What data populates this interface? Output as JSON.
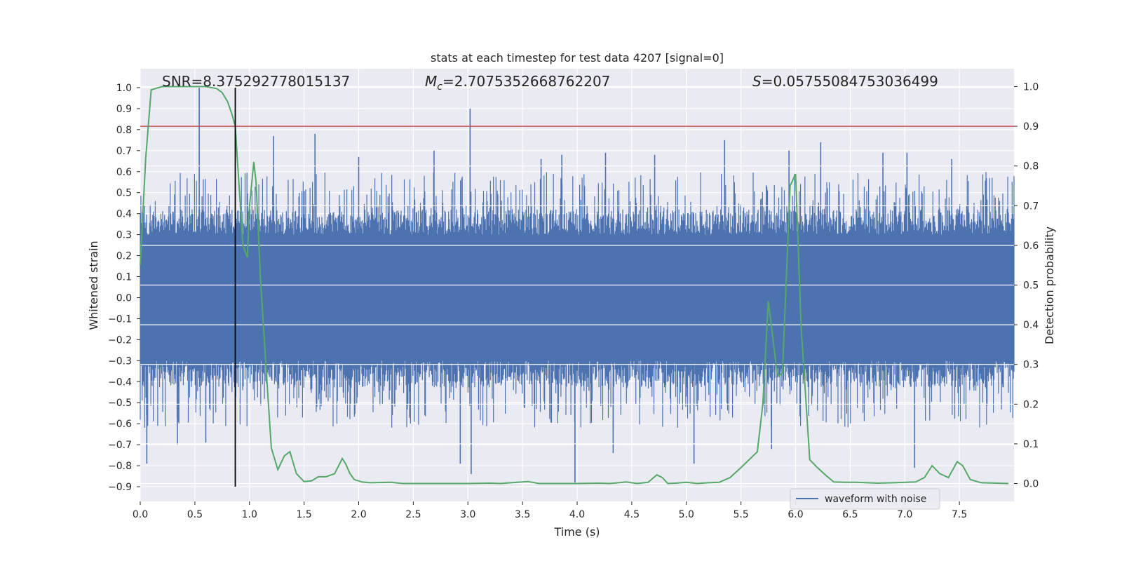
{
  "chart_data": {
    "type": "line",
    "title": "stats at each timestep for test data 4207 [signal=0]",
    "xlabel": "Time (s)",
    "ylabel_left": "Whitened strain",
    "ylabel_right": "Detection probability",
    "xlim": [
      0.0,
      8.0
    ],
    "ylim_left": [
      -0.97,
      1.09
    ],
    "ylim_right": [
      -0.045,
      1.045
    ],
    "x_ticks": [
      0.0,
      0.5,
      1.0,
      1.5,
      2.0,
      2.5,
      3.0,
      3.5,
      4.0,
      4.5,
      5.0,
      5.5,
      6.0,
      6.5,
      7.0,
      7.5
    ],
    "x_tick_labels": [
      "0.0",
      "0.5",
      "1.0",
      "1.5",
      "2.0",
      "2.5",
      "3.0",
      "3.5",
      "4.0",
      "4.5",
      "5.0",
      "5.5",
      "6.0",
      "6.5",
      "7.0",
      "7.5"
    ],
    "y_left_ticks": [
      1.0,
      0.9,
      0.8,
      0.7,
      0.6,
      0.5,
      0.4,
      0.3,
      0.2,
      0.1,
      0.0,
      -0.1,
      -0.2,
      -0.3,
      -0.4,
      -0.5,
      -0.6,
      -0.7,
      -0.8,
      -0.9
    ],
    "y_left_tick_labels": [
      "1.0",
      "0.9",
      "0.8",
      "0.7",
      "0.6",
      "0.5",
      "0.4",
      "0.3",
      "0.2",
      "0.1",
      "0.0",
      "−0.1",
      "−0.2",
      "−0.3",
      "−0.4",
      "−0.5",
      "−0.6",
      "−0.7",
      "−0.8",
      "−0.9"
    ],
    "y_right_ticks": [
      1.0,
      0.9,
      0.8,
      0.7,
      0.6,
      0.5,
      0.4,
      0.3,
      0.2,
      0.1,
      0.0
    ],
    "y_right_tick_labels": [
      "1.0",
      "0.9",
      "0.8",
      "0.7",
      "0.6",
      "0.5",
      "0.4",
      "0.3",
      "0.2",
      "0.1",
      "0.0"
    ],
    "grid": true,
    "stats": {
      "snr": "SNR=8.375292778015137",
      "mc_symbol": "M",
      "mc_subscript": "c",
      "mc_value": "=2.7075352668762207",
      "s_symbol": "S",
      "s_value": "=0.05755084753036499"
    },
    "legend": {
      "label": "waveform with noise",
      "placement": "lower right"
    },
    "colors": {
      "waveform": "#4c72b0",
      "probability": "#55a868",
      "threshold": "#c44e52",
      "marker": "#000000",
      "plot_bg": "#eaeaf2",
      "grid": "#ffffff"
    },
    "threshold": {
      "axis": "right",
      "value": 0.9
    },
    "marker_line": {
      "x": 0.87,
      "y_range": [
        -0.9,
        1.0
      ]
    },
    "waveform": {
      "series_name": "waveform with noise",
      "typical_upper": 0.3,
      "typical_lower": -0.3,
      "spikes": [
        {
          "x": 0.54,
          "y": 1.0
        },
        {
          "x": 3.02,
          "y": 0.9
        },
        {
          "x": 1.6,
          "y": 0.78
        },
        {
          "x": 1.22,
          "y": 0.77
        },
        {
          "x": 3.98,
          "y": -0.88
        },
        {
          "x": 3.03,
          "y": -0.84
        },
        {
          "x": 0.06,
          "y": -0.79
        },
        {
          "x": 2.93,
          "y": -0.79
        },
        {
          "x": 7.09,
          "y": -0.81
        },
        {
          "x": 5.35,
          "y": 0.75
        },
        {
          "x": 6.23,
          "y": 0.74
        },
        {
          "x": 5.94,
          "y": 0.7
        },
        {
          "x": 7.02,
          "y": 0.69
        },
        {
          "x": 4.26,
          "y": 0.69
        },
        {
          "x": 6.8,
          "y": 0.69
        },
        {
          "x": 2.69,
          "y": 0.7
        },
        {
          "x": 2.0,
          "y": 0.67
        },
        {
          "x": 4.33,
          "y": -0.74
        },
        {
          "x": 4.71,
          "y": 0.68
        },
        {
          "x": 0.34,
          "y": -0.7
        },
        {
          "x": 0.6,
          "y": -0.69
        },
        {
          "x": 5.07,
          "y": -0.79
        },
        {
          "x": 3.67,
          "y": 0.66
        },
        {
          "x": 3.86,
          "y": 0.68
        },
        {
          "x": 5.78,
          "y": -0.72
        },
        {
          "x": 7.43,
          "y": 0.66
        }
      ]
    },
    "probability": {
      "series_name": "",
      "x": [
        0.0,
        0.05,
        0.1,
        0.2,
        0.3,
        0.4,
        0.5,
        0.6,
        0.7,
        0.75,
        0.8,
        0.84,
        0.87,
        0.9,
        0.94,
        0.98,
        1.0,
        1.04,
        1.06,
        1.1,
        1.15,
        1.2,
        1.26,
        1.32,
        1.37,
        1.43,
        1.5,
        1.57,
        1.63,
        1.7,
        1.78,
        1.85,
        1.88,
        1.92,
        1.96,
        2.03,
        2.1,
        2.3,
        2.4,
        2.6,
        2.8,
        3.0,
        3.2,
        3.3,
        3.45,
        3.55,
        3.65,
        3.8,
        4.0,
        4.2,
        4.3,
        4.45,
        4.55,
        4.65,
        4.73,
        4.78,
        4.83,
        4.9,
        5.0,
        5.1,
        5.2,
        5.3,
        5.4,
        5.5,
        5.65,
        5.7,
        5.75,
        5.8,
        5.83,
        5.85,
        5.88,
        5.95,
        6.0,
        6.05,
        6.13,
        6.2,
        6.28,
        6.35,
        6.45,
        6.55,
        6.65,
        6.75,
        6.9,
        7.1,
        7.18,
        7.25,
        7.32,
        7.4,
        7.48,
        7.53,
        7.6,
        7.7,
        7.95
      ],
      "y": [
        0.55,
        0.82,
        0.992,
        1.0,
        1.0,
        1.0,
        1.0,
        1.0,
        0.995,
        0.985,
        0.962,
        0.93,
        0.9,
        0.77,
        0.6,
        0.57,
        0.7,
        0.81,
        0.76,
        0.52,
        0.3,
        0.09,
        0.035,
        0.07,
        0.08,
        0.025,
        0.005,
        0.007,
        0.017,
        0.017,
        0.025,
        0.063,
        0.05,
        0.025,
        0.01,
        0.004,
        0.002,
        0.003,
        0.0,
        0.0,
        0.0,
        0.0,
        0.001,
        0.0,
        0.003,
        0.005,
        0.0,
        0.0,
        0.0,
        0.001,
        0.0,
        0.004,
        0.0,
        0.003,
        0.022,
        0.015,
        0.0,
        0.001,
        0.003,
        0.0,
        0.002,
        0.003,
        0.015,
        0.04,
        0.08,
        0.2,
        0.46,
        0.35,
        0.28,
        0.27,
        0.28,
        0.75,
        0.78,
        0.4,
        0.06,
        0.04,
        0.02,
        0.004,
        0.003,
        0.003,
        0.002,
        0.001,
        0.002,
        0.004,
        0.015,
        0.045,
        0.025,
        0.015,
        0.055,
        0.045,
        0.01,
        0.002,
        0.0
      ]
    }
  }
}
